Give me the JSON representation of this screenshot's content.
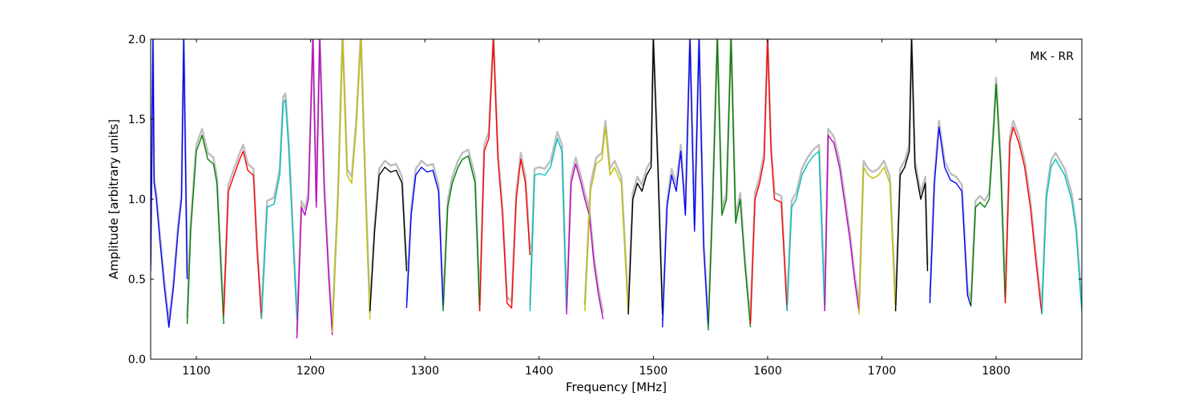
{
  "chart_data": {
    "type": "line",
    "annotation": "MK - RR",
    "xlabel": "Frequency [MHz]",
    "ylabel": "Amplitude [arbitrary units]",
    "xlim": [
      1060,
      1875
    ],
    "ylim": [
      0.0,
      2.0
    ],
    "x_ticks": [
      1100,
      1200,
      1300,
      1400,
      1500,
      1600,
      1700,
      1800
    ],
    "x_tick_labels": [
      "1100",
      "1200",
      "1300",
      "1400",
      "1500",
      "1600",
      "1700",
      "1800"
    ],
    "y_ticks": [
      0.0,
      0.5,
      1.0,
      1.5,
      2.0
    ],
    "y_tick_labels": [
      "0.0",
      "0.5",
      "1.0",
      "1.5",
      "2.0"
    ],
    "grid": false,
    "background_series_color": "#bfbfbf",
    "series": [
      {
        "color": "#0000ff",
        "x": [
          1060,
          1062,
          1063,
          1065,
          1068,
          1072,
          1076,
          1080,
          1084,
          1087,
          1089,
          1092
        ],
        "y": [
          0.55,
          2.0,
          1.1,
          1.0,
          0.75,
          0.45,
          0.2,
          0.45,
          0.8,
          1.0,
          2.0,
          0.5
        ]
      },
      {
        "color": "#008000",
        "x": [
          1092,
          1095,
          1100,
          1105,
          1110,
          1115,
          1118,
          1122,
          1124
        ],
        "y": [
          0.22,
          0.8,
          1.3,
          1.4,
          1.25,
          1.22,
          1.1,
          0.5,
          0.22
        ]
      },
      {
        "color": "#ff0000",
        "x": [
          1124,
          1128,
          1133,
          1138,
          1141,
          1145,
          1150,
          1153,
          1157
        ],
        "y": [
          0.28,
          1.05,
          1.15,
          1.25,
          1.3,
          1.18,
          1.15,
          0.7,
          0.25
        ]
      },
      {
        "color": "#00bfbf",
        "x": [
          1157,
          1162,
          1168,
          1173,
          1176,
          1178,
          1181,
          1185,
          1188
        ],
        "y": [
          0.25,
          0.95,
          0.97,
          1.15,
          1.6,
          1.62,
          1.3,
          0.7,
          0.25
        ]
      },
      {
        "color": "#c000c0",
        "x": [
          1188,
          1192,
          1195,
          1198,
          1202,
          1205,
          1208,
          1212,
          1216,
          1219
        ],
        "y": [
          0.13,
          0.95,
          0.9,
          1.0,
          2.0,
          0.95,
          2.0,
          1.05,
          0.5,
          0.15
        ]
      },
      {
        "color": "#bfbf00",
        "x": [
          1219,
          1224,
          1228,
          1232,
          1236,
          1240,
          1244,
          1248,
          1252
        ],
        "y": [
          0.17,
          1.0,
          2.0,
          1.15,
          1.1,
          1.45,
          2.0,
          1.05,
          0.25
        ]
      },
      {
        "color": "#000000",
        "x": [
          1252,
          1256,
          1260,
          1265,
          1270,
          1275,
          1280,
          1284
        ],
        "y": [
          0.3,
          0.8,
          1.15,
          1.2,
          1.17,
          1.18,
          1.1,
          0.55
        ]
      },
      {
        "color": "#0000ff",
        "x": [
          1284,
          1288,
          1292,
          1297,
          1302,
          1307,
          1312,
          1316
        ],
        "y": [
          0.32,
          0.9,
          1.15,
          1.2,
          1.17,
          1.18,
          1.05,
          0.32
        ]
      },
      {
        "color": "#008000",
        "x": [
          1316,
          1320,
          1324,
          1329,
          1333,
          1338,
          1344,
          1348
        ],
        "y": [
          0.3,
          0.95,
          1.1,
          1.2,
          1.25,
          1.27,
          1.1,
          0.3
        ]
      },
      {
        "color": "#ff0000",
        "x": [
          1348,
          1352,
          1356,
          1360,
          1364,
          1368,
          1372,
          1376,
          1380,
          1384,
          1388,
          1392
        ],
        "y": [
          0.3,
          1.3,
          1.38,
          2.0,
          1.25,
          0.9,
          0.35,
          0.32,
          1.0,
          1.25,
          1.1,
          0.65
        ]
      },
      {
        "color": "#00bfbf",
        "x": [
          1392,
          1396,
          1400,
          1405,
          1410,
          1416,
          1420,
          1424
        ],
        "y": [
          0.3,
          1.15,
          1.16,
          1.15,
          1.2,
          1.38,
          1.3,
          0.3
        ]
      },
      {
        "color": "#c000c0",
        "x": [
          1424,
          1428,
          1432,
          1436,
          1440,
          1444,
          1448,
          1452,
          1456
        ],
        "y": [
          0.28,
          1.1,
          1.22,
          1.12,
          1.0,
          0.9,
          0.6,
          0.4,
          0.25
        ]
      },
      {
        "color": "#bfbf00",
        "x": [
          1440,
          1445,
          1450,
          1455,
          1458,
          1462,
          1466,
          1472,
          1478
        ],
        "y": [
          0.3,
          1.05,
          1.22,
          1.25,
          1.45,
          1.15,
          1.2,
          1.1,
          0.28
        ]
      },
      {
        "color": "#000000",
        "x": [
          1478,
          1482,
          1486,
          1490,
          1494,
          1498,
          1500,
          1504,
          1508
        ],
        "y": [
          0.28,
          1.0,
          1.1,
          1.05,
          1.15,
          1.2,
          2.0,
          1.2,
          0.28
        ]
      },
      {
        "color": "#0000ff",
        "x": [
          1508,
          1512,
          1516,
          1520,
          1524,
          1528,
          1532,
          1536,
          1540,
          1544,
          1548
        ],
        "y": [
          0.2,
          0.95,
          1.15,
          1.05,
          1.3,
          0.9,
          2.0,
          0.8,
          2.0,
          0.7,
          0.2
        ]
      },
      {
        "color": "#008000",
        "x": [
          1548,
          1552,
          1556,
          1560,
          1564,
          1568,
          1572,
          1576,
          1580,
          1585
        ],
        "y": [
          0.18,
          1.0,
          2.0,
          0.9,
          1.0,
          2.0,
          0.85,
          1.0,
          0.6,
          0.2
        ]
      },
      {
        "color": "#ff0000",
        "x": [
          1585,
          1589,
          1593,
          1597,
          1600,
          1603,
          1606,
          1612,
          1617
        ],
        "y": [
          0.22,
          1.0,
          1.1,
          1.25,
          2.0,
          1.3,
          1.0,
          0.98,
          0.3
        ]
      },
      {
        "color": "#00bfbf",
        "x": [
          1617,
          1621,
          1625,
          1630,
          1635,
          1640,
          1645,
          1650
        ],
        "y": [
          0.3,
          0.95,
          1.0,
          1.15,
          1.22,
          1.27,
          1.3,
          0.3
        ]
      },
      {
        "color": "#c000c0",
        "x": [
          1650,
          1653,
          1658,
          1663,
          1668,
          1672,
          1676,
          1680
        ],
        "y": [
          0.3,
          1.4,
          1.35,
          1.2,
          0.95,
          0.75,
          0.5,
          0.3
        ]
      },
      {
        "color": "#bfbf00",
        "x": [
          1680,
          1684,
          1688,
          1692,
          1697,
          1702,
          1707,
          1712
        ],
        "y": [
          0.28,
          1.2,
          1.15,
          1.13,
          1.15,
          1.2,
          1.1,
          0.3
        ]
      },
      {
        "color": "#000000",
        "x": [
          1712,
          1716,
          1720,
          1724,
          1726,
          1729,
          1734,
          1738,
          1740
        ],
        "y": [
          0.3,
          1.15,
          1.2,
          1.3,
          2.0,
          1.2,
          1.0,
          1.1,
          0.55
        ]
      },
      {
        "color": "#0000ff",
        "x": [
          1742,
          1746,
          1750,
          1755,
          1760,
          1765,
          1770,
          1775,
          1778
        ],
        "y": [
          0.35,
          1.1,
          1.45,
          1.2,
          1.12,
          1.1,
          1.05,
          0.4,
          0.33
        ]
      },
      {
        "color": "#008000",
        "x": [
          1778,
          1782,
          1786,
          1790,
          1794,
          1798,
          1800,
          1804,
          1808
        ],
        "y": [
          0.33,
          0.95,
          0.98,
          0.95,
          1.0,
          1.45,
          1.72,
          1.2,
          0.35
        ]
      },
      {
        "color": "#ff0000",
        "x": [
          1808,
          1812,
          1815,
          1820,
          1825,
          1830,
          1835,
          1840
        ],
        "y": [
          0.35,
          1.35,
          1.45,
          1.35,
          1.2,
          0.95,
          0.6,
          0.28
        ]
      },
      {
        "color": "#00bfbf",
        "x": [
          1840,
          1844,
          1848,
          1852,
          1856,
          1860,
          1866,
          1870,
          1875
        ],
        "y": [
          0.28,
          1.0,
          1.2,
          1.25,
          1.2,
          1.15,
          1.0,
          0.8,
          0.3
        ]
      }
    ]
  }
}
